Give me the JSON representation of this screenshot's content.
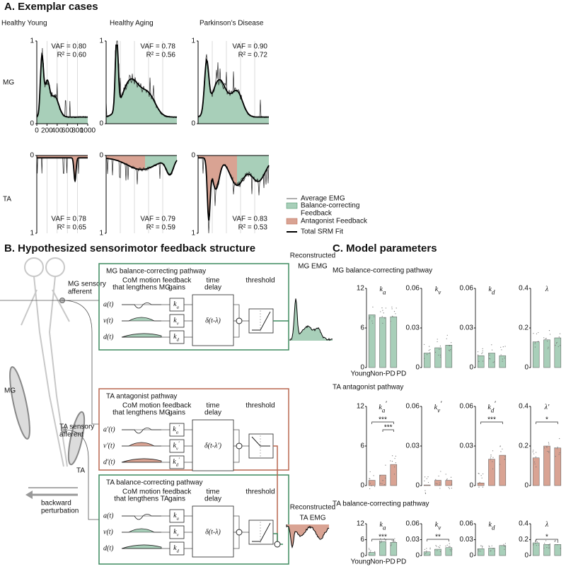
{
  "panel_a": {
    "title": "A. Exemplar cases",
    "columns": [
      "Healthy Young",
      "Healthy Aging",
      "Parkinson’s Disease"
    ],
    "rows": [
      "MG",
      "TA"
    ],
    "xlim": [
      0,
      1000
    ],
    "xticks": [
      0,
      200,
      400,
      600,
      800,
      1000
    ],
    "ylim": [
      0,
      1
    ],
    "yticks": [
      0,
      1
    ],
    "stats": [
      [
        {
          "vaf": "VAF = 0.80",
          "r2": "R² = 0.60"
        },
        {
          "vaf": "VAF = 0.78",
          "r2": "R² = 0.56"
        },
        {
          "vaf": "VAF = 0.90",
          "r2": "R² = 0.72"
        }
      ],
      [
        {
          "vaf": "VAF = 0.78",
          "r2": "R² = 0.65"
        },
        {
          "vaf": "VAF = 0.79",
          "r2": "R² = 0.59"
        },
        {
          "vaf": "VAF = 0.83",
          "r2": "R² = 0.53"
        }
      ]
    ],
    "legend": {
      "average": "Average EMG",
      "balance": [
        "Balance-correcting",
        "Feedback"
      ],
      "antagonist": "Antagonist Feedback",
      "total": "Total SRM Fit"
    }
  },
  "panel_b": {
    "title": "B. Hypothesized sensorimotor feedback structure",
    "mg_afferent": [
      "MG sensory",
      "afferent"
    ],
    "ta_afferent": [
      "TA sensory",
      "afferent"
    ],
    "muscle_mg": "MG",
    "muscle_ta": "TA",
    "perturbation": [
      "backward",
      "perturbation"
    ],
    "reconstructed_mg": [
      "Reconstructed",
      "MG EMG"
    ],
    "reconstructed_ta": [
      "Reconstructed",
      "TA EMG"
    ],
    "pathways": [
      {
        "title": "MG balance-correcting pathway",
        "com": [
          "CoM motion",
          "that lengthens MG"
        ],
        "gains": [
          "feedback",
          "gains"
        ],
        "delay": [
          "time",
          "delay"
        ],
        "threshold": "threshold",
        "signals": [
          "a(t)",
          "v(t)",
          "d(t)"
        ],
        "gains_k": [
          {
            "sym": "k",
            "sub": "a"
          },
          {
            "sym": "k",
            "sub": "v"
          },
          {
            "sym": "k",
            "sub": "d"
          }
        ],
        "delay_expr": "δ(t-λ)",
        "color": "#3d8a5f",
        "fill": "#a8cfb9"
      },
      {
        "title": "TA antagonist pathway",
        "com": [
          "CoM motion",
          "that lengthens MG"
        ],
        "gains": [
          "feedback",
          "gains"
        ],
        "delay": [
          "time",
          "delay"
        ],
        "threshold": "threshold",
        "signals": [
          "a′(t)",
          "v′(t)",
          "d′(t)"
        ],
        "gains_k": [
          {
            "sym": "k",
            "sub": "a",
            "prime": "′"
          },
          {
            "sym": "k",
            "sub": "v",
            "prime": "′"
          },
          {
            "sym": "k",
            "sub": "d",
            "prime": "′"
          }
        ],
        "delay_expr": "δ(t-λ′)",
        "color": "#b8674f",
        "fill": "#d9a393"
      },
      {
        "title": "TA balance-correcting pathway",
        "com": [
          "CoM motion",
          "that lengthens TA"
        ],
        "gains": [
          "feedback",
          "gains"
        ],
        "delay": [
          "time",
          "delay"
        ],
        "threshold": "threshold",
        "signals": [
          "a(t)",
          "v(t)",
          "d(t)"
        ],
        "gains_k": [
          {
            "sym": "k",
            "sub": "a"
          },
          {
            "sym": "k",
            "sub": "v"
          },
          {
            "sym": "k",
            "sub": "d"
          }
        ],
        "delay_expr": "δ(t-λ)",
        "color": "#3d8a5f",
        "fill": "#a8cfb9"
      }
    ]
  },
  "panel_c": {
    "title": "C. Model parameters",
    "categories": [
      "Young",
      "Non-PD",
      "PD"
    ],
    "rows": [
      {
        "title": "MG balance-correcting pathway",
        "color": "#a8cfb9",
        "charts": [
          {
            "type": "bar",
            "label": {
              "sym": "k",
              "sub": "a"
            },
            "ylim": [
              0,
              12
            ],
            "yticks": [
              0,
              6,
              12
            ],
            "values": [
              8,
              7.6,
              7.7
            ],
            "significance": []
          },
          {
            "type": "bar",
            "label": {
              "sym": "k",
              "sub": "v"
            },
            "ylim": [
              0,
              0.06
            ],
            "yticks": [
              0,
              0.03,
              0.06
            ],
            "values": [
              0.011,
              0.015,
              0.017
            ],
            "significance": []
          },
          {
            "type": "bar",
            "label": {
              "sym": "k",
              "sub": "d"
            },
            "ylim": [
              0,
              0.06
            ],
            "yticks": [
              0,
              0.03,
              0.06
            ],
            "values": [
              0.009,
              0.011,
              0.009
            ],
            "significance": []
          },
          {
            "type": "bar",
            "label": {
              "sym": "λ"
            },
            "ylim": [
              0,
              0.4
            ],
            "yticks": [
              0,
              0.2,
              0.4
            ],
            "values": [
              0.13,
              0.14,
              0.15
            ],
            "significance": []
          }
        ]
      },
      {
        "title": "TA antagonist pathway",
        "color": "#d9a393",
        "charts": [
          {
            "type": "bar",
            "label": {
              "sym": "k",
              "sub": "a",
              "prime": "′"
            },
            "ylim": [
              0,
              12
            ],
            "yticks": [
              0,
              6,
              12
            ],
            "values": [
              0.8,
              1.6,
              3.2
            ],
            "significance": [
              "***",
              "***"
            ]
          },
          {
            "type": "bar",
            "label": {
              "sym": "k",
              "sub": "v",
              "prime": "′"
            },
            "ylim": [
              0,
              0.06
            ],
            "yticks": [
              0,
              0.03,
              0.06
            ],
            "values": [
              0.0005,
              0.004,
              0.004
            ],
            "significance": []
          },
          {
            "type": "bar",
            "label": {
              "sym": "k",
              "sub": "d",
              "prime": "′"
            },
            "ylim": [
              0,
              0.06
            ],
            "yticks": [
              0,
              0.03,
              0.06
            ],
            "values": [
              0.002,
              0.02,
              0.023
            ],
            "significance": [
              "***"
            ]
          },
          {
            "type": "bar",
            "label": {
              "sym": "λ",
              "prime": "′"
            },
            "ylim": [
              0,
              0.4
            ],
            "yticks": [
              0,
              0.2,
              0.4
            ],
            "values": [
              0.14,
              0.2,
              0.19
            ],
            "significance": [
              "*"
            ]
          }
        ]
      },
      {
        "title": "TA balance-correcting pathway",
        "color": "#a8cfb9",
        "charts": [
          {
            "type": "bar",
            "label": {
              "sym": "k",
              "sub": "a"
            },
            "ylim": [
              0,
              12
            ],
            "yticks": [
              0,
              6,
              12
            ],
            "values": [
              1.2,
              5.3,
              5.0
            ],
            "significance": [
              "***"
            ]
          },
          {
            "type": "bar",
            "label": {
              "sym": "k",
              "sub": "v"
            },
            "ylim": [
              0,
              0.06
            ],
            "yticks": [
              0,
              0.03,
              0.06
            ],
            "values": [
              0.007,
              0.012,
              0.015
            ],
            "significance": [
              "**"
            ]
          },
          {
            "type": "bar",
            "label": {
              "sym": "k",
              "sub": "d"
            },
            "ylim": [
              0,
              0.06
            ],
            "yticks": [
              0,
              0.03,
              0.06
            ],
            "values": [
              0.013,
              0.014,
              0.019
            ],
            "significance": []
          },
          {
            "type": "bar",
            "label": {
              "sym": "λ"
            },
            "ylim": [
              0,
              0.4
            ],
            "yticks": [
              0,
              0.2,
              0.4
            ],
            "values": [
              0.16,
              0.14,
              0.14
            ],
            "significance": [
              "*"
            ]
          }
        ]
      }
    ]
  }
}
